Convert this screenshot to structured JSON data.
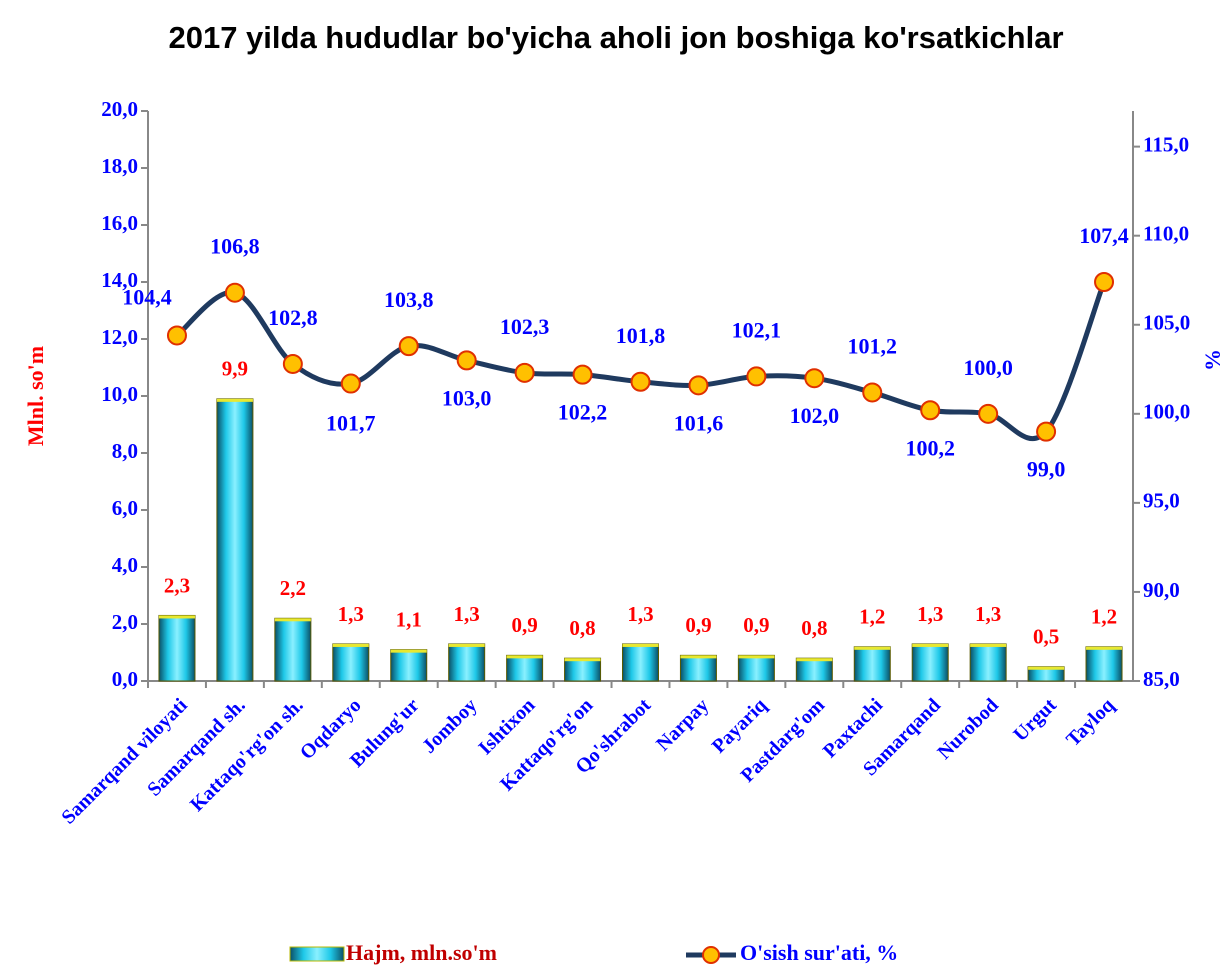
{
  "chart_data": {
    "type": "bar-line",
    "title": "2017 yilda hududlar bo'yicha aholi jon boshiga ko'rsatkichlar",
    "ylabel": "Mlnl. so'm",
    "y2label": "%",
    "categories": [
      "Samarqand viloyati",
      "Samarqand sh.",
      "Kattaqo'rg'on sh.",
      "Oqdaryo",
      "Bulung'ur",
      "Jomboy",
      "Ishtixon",
      "Kattaqo'rg'on",
      "Qo'shrabot",
      "Narpay",
      "Payariq",
      "Pastdarg'om",
      "Paxtachi",
      "Samarqand",
      "Nurobod",
      "Urgut",
      "Tayloq"
    ],
    "series": [
      {
        "name": "Hajm, mln.so'm",
        "type": "bar",
        "color": "#1ec8e8",
        "values": [
          2.3,
          9.9,
          2.2,
          1.3,
          1.1,
          1.3,
          0.9,
          0.8,
          1.3,
          0.9,
          0.9,
          0.8,
          1.2,
          1.3,
          1.3,
          0.5,
          1.2
        ],
        "value_labels": [
          "2,3",
          "9,9",
          "2,2",
          "1,3",
          "1,1",
          "1,3",
          "0,9",
          "0,8",
          "1,3",
          "0,9",
          "0,9",
          "0,8",
          "1,2",
          "1,3",
          "1,3",
          "0,5",
          "1,2"
        ]
      },
      {
        "name": "O'sish sur'ati, %",
        "type": "line",
        "axis": "y2",
        "color": "#1f3a5f",
        "marker_color": "#ffc000",
        "values": [
          104.4,
          106.8,
          102.8,
          101.7,
          103.8,
          103.0,
          102.3,
          102.2,
          101.8,
          101.6,
          102.1,
          102.0,
          101.2,
          100.2,
          100.0,
          99.0,
          107.4
        ],
        "value_labels": [
          "104,4",
          "106,8",
          "102,8",
          "101,7",
          "103,8",
          "103,0",
          "102,3",
          "102,2",
          "101,8",
          "101,6",
          "102,1",
          "102,0",
          "101,2",
          "100,2",
          "100,0",
          "99,0",
          "107,4"
        ]
      }
    ],
    "ylim": [
      0,
      20
    ],
    "yticks": [
      {
        "value": 0,
        "label": "0,0"
      },
      {
        "value": 2,
        "label": "2,0"
      },
      {
        "value": 4,
        "label": "4,0"
      },
      {
        "value": 6,
        "label": "6,0"
      },
      {
        "value": 8,
        "label": "8,0"
      },
      {
        "value": 10,
        "label": "10,0"
      },
      {
        "value": 12,
        "label": "12,0"
      },
      {
        "value": 14,
        "label": "14,0"
      },
      {
        "value": 16,
        "label": "16,0"
      },
      {
        "value": 18,
        "label": "18,0"
      },
      {
        "value": 20,
        "label": "20,0"
      }
    ],
    "y2lim": [
      85,
      117
    ],
    "y2ticks": [
      {
        "value": 85,
        "label": "85,0"
      },
      {
        "value": 90,
        "label": "90,0"
      },
      {
        "value": 95,
        "label": "95,0"
      },
      {
        "value": 100,
        "label": "100,0"
      },
      {
        "value": 105,
        "label": "105,0"
      },
      {
        "value": 110,
        "label": "110,0"
      },
      {
        "value": 115,
        "label": "115,0"
      }
    ],
    "legend": "bottom"
  }
}
